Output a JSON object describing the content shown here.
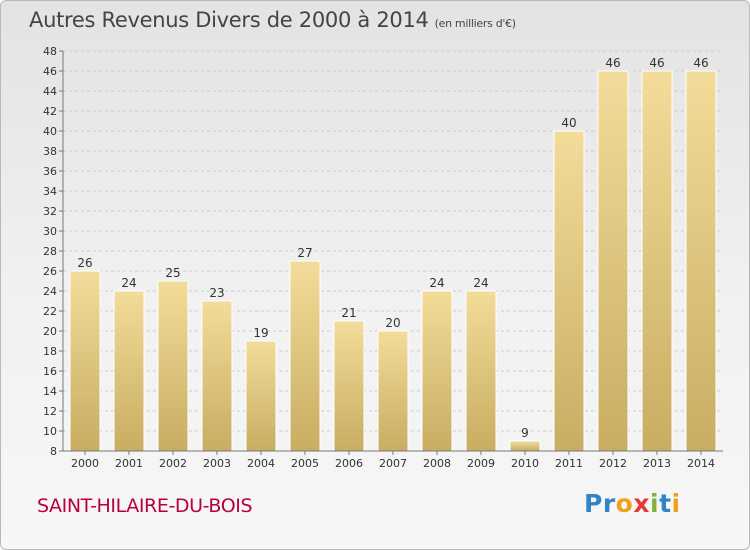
{
  "header": {
    "title": "Autres Revenus Divers de 2000 à 2014",
    "unit": "(en milliers d'€)"
  },
  "commune": "SAINT-HILAIRE-DU-BOIS",
  "logo": {
    "letters": [
      "P",
      "r",
      "o",
      "x",
      "i",
      "t",
      "i"
    ],
    "colors": [
      "#2e86c8",
      "#2e86c8",
      "#f0a11a",
      "#e53935",
      "#7cb342",
      "#2e86c8",
      "#f0a11a"
    ]
  },
  "colors": {
    "bar_top": "#f3dc9a",
    "bar_bottom": "#c8ad62",
    "axis": "#777777",
    "grid": "#cccccc"
  },
  "chart_data": {
    "type": "bar",
    "title": "Autres Revenus Divers de 2000 à 2014",
    "ylabel": "(en milliers d'€)",
    "categories": [
      "2000",
      "2001",
      "2002",
      "2003",
      "2004",
      "2005",
      "2006",
      "2007",
      "2008",
      "2009",
      "2010",
      "2011",
      "2012",
      "2013",
      "2014"
    ],
    "values": [
      26,
      24,
      25,
      23,
      19,
      27,
      21,
      20,
      24,
      24,
      9,
      40,
      46,
      46,
      46
    ],
    "ylim": [
      8,
      48
    ],
    "yticks": [
      8,
      10,
      12,
      14,
      16,
      18,
      20,
      22,
      24,
      26,
      28,
      30,
      32,
      34,
      36,
      38,
      40,
      42,
      44,
      46,
      48
    ],
    "grid": true,
    "data_labels": true
  }
}
